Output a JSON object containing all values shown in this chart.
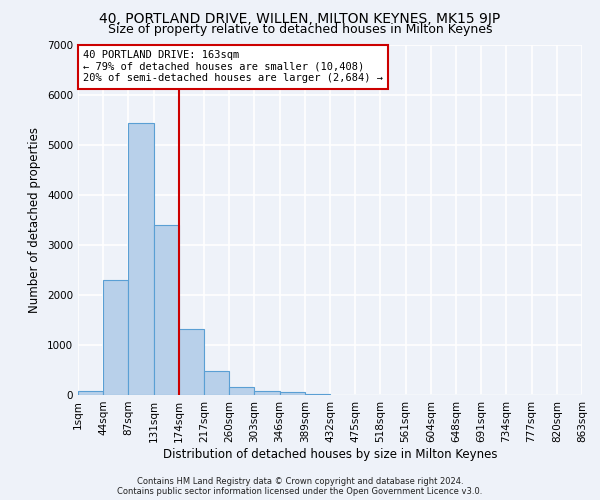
{
  "title": "40, PORTLAND DRIVE, WILLEN, MILTON KEYNES, MK15 9JP",
  "subtitle": "Size of property relative to detached houses in Milton Keynes",
  "xlabel": "Distribution of detached houses by size in Milton Keynes",
  "ylabel": "Number of detached properties",
  "footer_line1": "Contains HM Land Registry data © Crown copyright and database right 2024.",
  "footer_line2": "Contains public sector information licensed under the Open Government Licence v3.0.",
  "bin_labels": [
    "1sqm",
    "44sqm",
    "87sqm",
    "131sqm",
    "174sqm",
    "217sqm",
    "260sqm",
    "303sqm",
    "346sqm",
    "389sqm",
    "432sqm",
    "475sqm",
    "518sqm",
    "561sqm",
    "604sqm",
    "648sqm",
    "691sqm",
    "734sqm",
    "777sqm",
    "820sqm",
    "863sqm"
  ],
  "bar_values": [
    75,
    2300,
    5450,
    3400,
    1320,
    480,
    160,
    90,
    55,
    25,
    10,
    5,
    2,
    0,
    0,
    0,
    0,
    0,
    0,
    0
  ],
  "bar_color": "#b8d0ea",
  "bar_edgecolor": "#5a9fd4",
  "bar_linewidth": 0.8,
  "vline_color": "#cc0000",
  "vline_linewidth": 1.5,
  "annotation_line1": "40 PORTLAND DRIVE: 163sqm",
  "annotation_line2": "← 79% of detached houses are smaller (10,408)",
  "annotation_line3": "20% of semi-detached houses are larger (2,684) →",
  "annotation_box_color": "#ffffff",
  "annotation_box_edgecolor": "#cc0000",
  "ylim": [
    0,
    7000
  ],
  "yticks": [
    0,
    1000,
    2000,
    3000,
    4000,
    5000,
    6000,
    7000
  ],
  "background_color": "#eef2f9",
  "axes_background": "#eef2f9",
  "grid_color": "#ffffff",
  "title_fontsize": 10,
  "subtitle_fontsize": 9,
  "xlabel_fontsize": 8.5,
  "ylabel_fontsize": 8.5,
  "tick_fontsize": 7.5,
  "annot_fontsize": 7.5
}
